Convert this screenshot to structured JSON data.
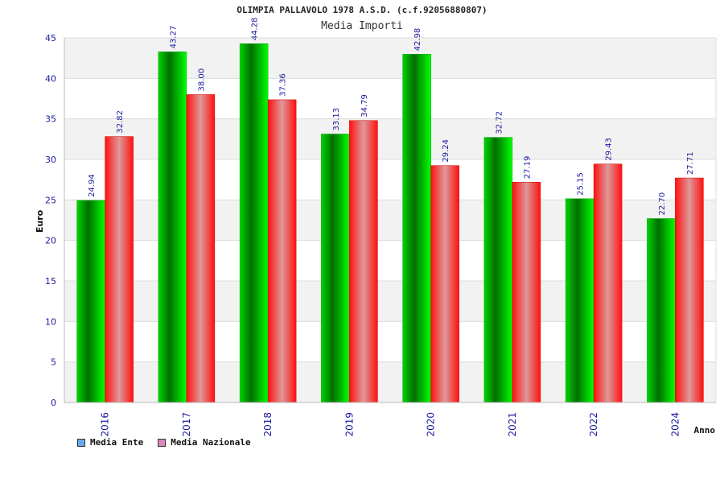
{
  "title": "OLIMPIA PALLAVOLO 1978 A.S.D. (c.f.92056880807)",
  "subtitle": "Media Importi",
  "colors": {
    "ente": "#00cc00",
    "nazionale": "#ee1111",
    "legend_ente": "#66aaee",
    "legend_nazionale": "#dd88bb",
    "axis_text": "#1a1aa0",
    "grid_band": "#f2f2f2"
  },
  "legend": {
    "ente_label": "Media Ente",
    "nazionale_label": "Media Nazionale"
  },
  "chart_data": {
    "type": "bar",
    "categories": [
      "2016",
      "2017",
      "2018",
      "2019",
      "2020",
      "2021",
      "2022",
      "2024"
    ],
    "series": [
      {
        "name": "Media Ente",
        "values": [
          24.94,
          43.27,
          44.28,
          33.13,
          42.98,
          32.72,
          25.15,
          22.7
        ],
        "labels": [
          "24.94",
          "43.27",
          "44.28",
          "33.13",
          "42.98",
          "32.72",
          "25.15",
          "22.70"
        ]
      },
      {
        "name": "Media Nazionale",
        "values": [
          32.82,
          38.0,
          37.36,
          34.79,
          29.24,
          27.19,
          29.43,
          27.71
        ],
        "labels": [
          "32.82",
          "38.00",
          "37.36",
          "34.79",
          "29.24",
          "27.19",
          "29.43",
          "27.71"
        ]
      }
    ],
    "xlabel": "Anno",
    "ylabel": "Euro",
    "ylim": [
      0,
      45
    ],
    "yticks": [
      0,
      5,
      10,
      15,
      20,
      25,
      30,
      35,
      40,
      45
    ],
    "grid": true,
    "legend_position": "bottom-left"
  }
}
